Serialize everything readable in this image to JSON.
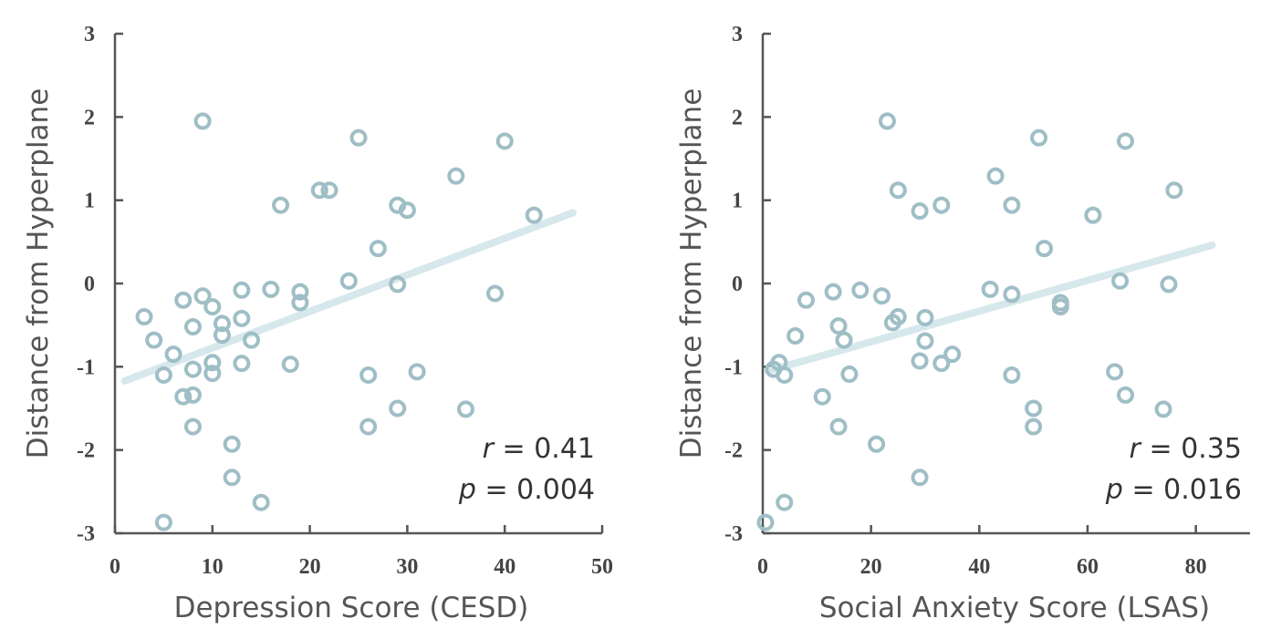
{
  "chart_data": [
    {
      "type": "scatter",
      "xlabel": "Depression Score (CESD)",
      "ylabel": "Distance from Hyperplane",
      "xlim": [
        0,
        50
      ],
      "ylim": [
        -3,
        3
      ],
      "x_ticks": [
        "0",
        "10",
        "20",
        "30",
        "40",
        "50"
      ],
      "y_ticks": [
        "3",
        "2",
        "1",
        "0",
        "-1",
        "-2",
        "-3"
      ],
      "stat_r_symbol": "r",
      "stat_r_text": " = 0.41",
      "stat_p_symbol": "p",
      "stat_p_text": " = 0.004",
      "marker_color": "#9fbec6",
      "trend_color": "#d6e8ec",
      "trendline": {
        "x": [
          1,
          47
        ],
        "y": [
          -1.17,
          0.85
        ]
      },
      "points": [
        [
          3,
          -0.4
        ],
        [
          4,
          -0.68
        ],
        [
          5,
          -1.1
        ],
        [
          5,
          -2.87
        ],
        [
          6,
          -0.85
        ],
        [
          7,
          -0.2
        ],
        [
          7,
          -1.36
        ],
        [
          8,
          -0.52
        ],
        [
          8,
          -1.03
        ],
        [
          8,
          -1.34
        ],
        [
          8,
          -1.72
        ],
        [
          9,
          1.95
        ],
        [
          9,
          -0.15
        ],
        [
          10,
          -0.28
        ],
        [
          10,
          -0.95
        ],
        [
          10,
          -1.08
        ],
        [
          11,
          -0.48
        ],
        [
          11,
          -0.62
        ],
        [
          12,
          -1.93
        ],
        [
          12,
          -2.33
        ],
        [
          13,
          -0.08
        ],
        [
          13,
          -0.42
        ],
        [
          13,
          -0.96
        ],
        [
          14,
          -0.68
        ],
        [
          15,
          -2.63
        ],
        [
          16,
          -0.07
        ],
        [
          17,
          0.94
        ],
        [
          18,
          -0.97
        ],
        [
          19,
          -0.1
        ],
        [
          19,
          -0.23
        ],
        [
          21,
          1.12
        ],
        [
          22,
          1.12
        ],
        [
          24,
          0.03
        ],
        [
          25,
          1.75
        ],
        [
          26,
          -1.1
        ],
        [
          26,
          -1.72
        ],
        [
          27,
          0.42
        ],
        [
          29,
          0.94
        ],
        [
          29,
          -0.01
        ],
        [
          29,
          -1.5
        ],
        [
          30,
          0.88
        ],
        [
          31,
          -1.06
        ],
        [
          35,
          1.29
        ],
        [
          36,
          -1.51
        ],
        [
          39,
          -0.12
        ],
        [
          40,
          1.71
        ],
        [
          43,
          0.82
        ]
      ]
    },
    {
      "type": "scatter",
      "xlabel": "Social Anxiety Score (LSAS)",
      "ylabel": "Distance from Hyperplane",
      "xlim": [
        0,
        90
      ],
      "ylim": [
        -3,
        3
      ],
      "x_ticks": [
        "0",
        "20",
        "40",
        "60",
        "80"
      ],
      "x_tick_values": [
        0,
        20,
        40,
        60,
        80
      ],
      "y_ticks": [
        "3",
        "2",
        "1",
        "0",
        "-1",
        "-2",
        "-3"
      ],
      "stat_r_symbol": "r",
      "stat_r_text": " = 0.35",
      "stat_p_symbol": "p",
      "stat_p_text": " = 0.016",
      "marker_color": "#9fbec6",
      "trend_color": "#d6e8ec",
      "trendline": {
        "x": [
          1,
          83
        ],
        "y": [
          -1.05,
          0.46
        ]
      },
      "points": [
        [
          0.5,
          -2.87
        ],
        [
          2,
          -1.03
        ],
        [
          3,
          -0.95
        ],
        [
          4,
          -1.1
        ],
        [
          4,
          -2.63
        ],
        [
          6,
          -0.63
        ],
        [
          8,
          -0.2
        ],
        [
          11,
          -1.36
        ],
        [
          13,
          -0.1
        ],
        [
          14,
          -0.51
        ],
        [
          14,
          -1.72
        ],
        [
          15,
          -0.68
        ],
        [
          16,
          -1.09
        ],
        [
          18,
          -0.08
        ],
        [
          21,
          -1.93
        ],
        [
          22,
          -0.15
        ],
        [
          23,
          1.95
        ],
        [
          24,
          -0.47
        ],
        [
          25,
          1.12
        ],
        [
          25,
          -0.4
        ],
        [
          29,
          0.87
        ],
        [
          29,
          -0.93
        ],
        [
          29,
          -2.33
        ],
        [
          30,
          -0.41
        ],
        [
          30,
          -0.69
        ],
        [
          33,
          0.94
        ],
        [
          33,
          -0.96
        ],
        [
          35,
          -0.85
        ],
        [
          42,
          -0.07
        ],
        [
          43,
          1.29
        ],
        [
          46,
          0.94
        ],
        [
          46,
          -0.13
        ],
        [
          46,
          -1.1
        ],
        [
          50,
          -1.5
        ],
        [
          50,
          -1.72
        ],
        [
          51,
          1.75
        ],
        [
          52,
          0.42
        ],
        [
          55,
          -0.23
        ],
        [
          55,
          -0.28
        ],
        [
          61,
          0.82
        ],
        [
          65,
          -1.06
        ],
        [
          66,
          0.03
        ],
        [
          67,
          1.71
        ],
        [
          67,
          -1.34
        ],
        [
          74,
          -1.51
        ],
        [
          75,
          -0.01
        ],
        [
          76,
          1.12
        ]
      ]
    }
  ]
}
